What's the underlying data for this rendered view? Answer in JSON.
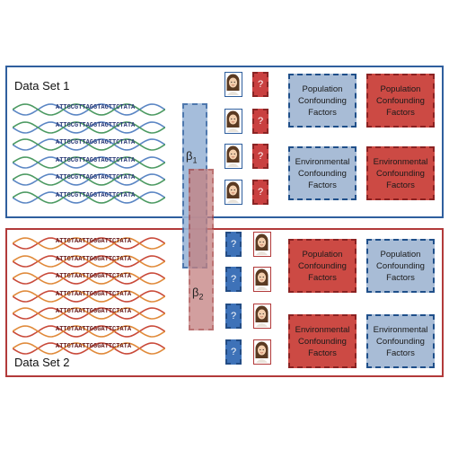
{
  "dataset1": {
    "label": "Data Set 1",
    "sequence": "ATTGCGTTAGGTAGTTCTATA",
    "rows": 6
  },
  "dataset2": {
    "label": "Data Set 2",
    "sequence": "ATTGTAATTGGGATTCTATA",
    "rows": 7
  },
  "beta1": {
    "base": "β",
    "sub": "1"
  },
  "beta2": {
    "base": "β",
    "sub": "2"
  },
  "question_mark": "?",
  "factors": {
    "population": "Population Confounding Factors",
    "environmental": "Environmental Confounding Factors"
  },
  "colors": {
    "blue_border": "#2f5f9e",
    "red_border": "#b23a3a",
    "blue_fill": "#a8bcd6",
    "red_fill": "#cc4a44"
  }
}
